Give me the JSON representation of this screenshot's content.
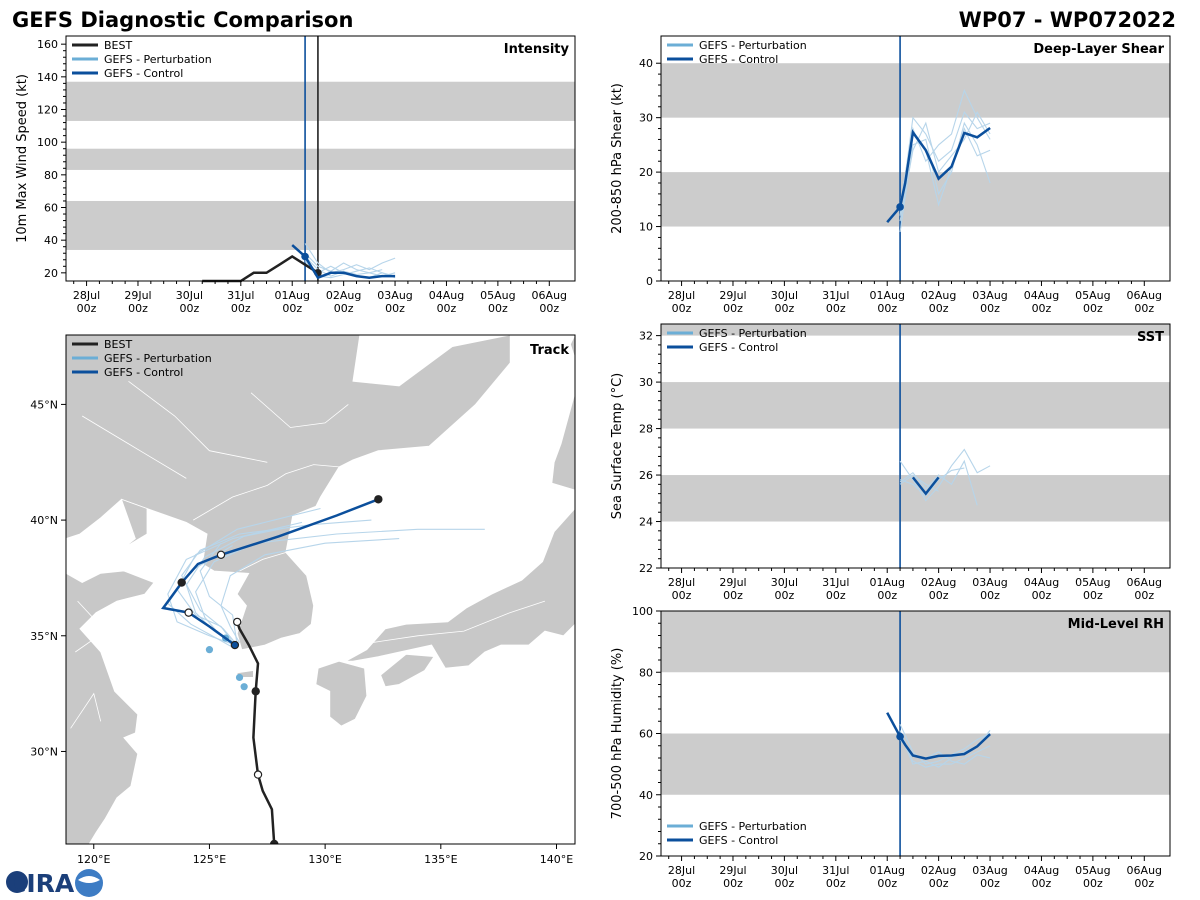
{
  "title_left": "GEFS Diagnostic Comparison",
  "title_right": "WP07 - WP072022",
  "colors": {
    "best": "#222222",
    "perturbation": "#6baed6",
    "perturbation_light": "#b7d5ea",
    "control": "#0b4f9c",
    "band": "#cccccc",
    "land": "#c8c8c8"
  },
  "time_axis": {
    "ticks": [
      "28Jul\n00z",
      "29Jul\n00z",
      "30Jul\n00z",
      "31Jul\n00z",
      "01Aug\n00z",
      "02Aug\n00z",
      "03Aug\n00z",
      "04Aug\n00z",
      "05Aug\n00z",
      "06Aug\n00z"
    ],
    "range_days": [
      -0.4,
      9.5
    ]
  },
  "logo": {
    "text": "CIRA"
  },
  "chart_data": [
    {
      "id": "intensity",
      "type": "line",
      "title": "Intensity",
      "ylabel": "10m Max Wind Speed (kt)",
      "ylim": [
        15,
        165
      ],
      "yticks": [
        20,
        40,
        60,
        80,
        100,
        120,
        140,
        160
      ],
      "bands": [
        [
          34,
          64
        ],
        [
          83,
          96
        ],
        [
          113,
          137
        ]
      ],
      "vlines": [
        {
          "day": 4.25,
          "series": "control"
        },
        {
          "day": 4.5,
          "series": "best"
        }
      ],
      "legend": [
        "BEST",
        "GEFS - Perturbation",
        "GEFS - Control"
      ],
      "legend_position": "top-left",
      "series": [
        {
          "name": "BEST",
          "x": [
            2.25,
            2.5,
            2.75,
            3.0,
            3.25,
            3.5,
            3.75,
            4.0,
            4.25,
            4.5
          ],
          "y": [
            15,
            15,
            15,
            15,
            20,
            20,
            25,
            30,
            25,
            20
          ],
          "marker_days": [
            4.5
          ]
        },
        {
          "name": "GEFS - Control",
          "x": [
            4.0,
            4.25,
            4.5,
            4.75,
            5.0,
            5.25,
            5.5,
            5.75,
            6.0
          ],
          "y": [
            37,
            30,
            17,
            20,
            20,
            18,
            17,
            18,
            18
          ],
          "marker_days": [
            4.25
          ]
        }
      ],
      "perturbation": [
        {
          "x": [
            4.25,
            4.5,
            4.75,
            5.0,
            5.25,
            5.5,
            5.75,
            6.0
          ],
          "y": [
            38,
            26,
            20,
            22,
            25,
            22,
            26,
            29
          ]
        },
        {
          "x": [
            4.25,
            4.5,
            4.75,
            5.0,
            5.25,
            5.5,
            5.75,
            6.0
          ],
          "y": [
            30,
            22,
            18,
            21,
            19,
            20,
            18,
            20
          ]
        },
        {
          "x": [
            4.25,
            4.5,
            4.75,
            5.0,
            5.25,
            5.5,
            5.75,
            6.0
          ],
          "y": [
            28,
            20,
            24,
            20,
            18,
            17,
            20,
            18
          ]
        },
        {
          "x": [
            4.25,
            4.5,
            4.75,
            5.0,
            5.25,
            5.5,
            5.75
          ],
          "y": [
            32,
            24,
            21,
            26,
            22,
            20,
            22
          ]
        },
        {
          "x": [
            4.25,
            4.5,
            4.75,
            5.0,
            5.25,
            5.5,
            5.75,
            6.0
          ],
          "y": [
            27,
            18,
            17,
            19,
            21,
            23,
            20,
            17
          ]
        }
      ]
    },
    {
      "id": "shear",
      "type": "line",
      "title": "Deep-Layer Shear",
      "ylabel": "200-850 hPa Shear (kt)",
      "ylim": [
        0,
        45
      ],
      "yticks": [
        0,
        10,
        20,
        30,
        40
      ],
      "bands": [
        [
          10,
          20
        ],
        [
          30,
          40
        ]
      ],
      "vlines": [
        {
          "day": 4.25,
          "series": "control"
        }
      ],
      "legend": [
        "GEFS - Perturbation",
        "GEFS - Control"
      ],
      "legend_position": "top-left",
      "series": [
        {
          "name": "GEFS - Control",
          "x": [
            4.0,
            4.25,
            4.35,
            4.5,
            4.75,
            5.0,
            5.25,
            5.5,
            5.75,
            6.0
          ],
          "y": [
            10.8,
            13.6,
            18,
            27.3,
            24,
            18.8,
            21,
            27.2,
            26.4,
            28.1
          ],
          "marker_days": [
            4.25
          ]
        }
      ],
      "perturbation": [
        {
          "x": [
            4.25,
            4.5,
            4.75,
            5.0,
            5.25,
            5.5,
            5.75,
            6.0
          ],
          "y": [
            12,
            30,
            27,
            22,
            24,
            31,
            28,
            29
          ]
        },
        {
          "x": [
            4.25,
            4.5,
            4.75,
            5.0,
            5.25,
            5.5,
            5.75,
            6.0
          ],
          "y": [
            9,
            25,
            26,
            16,
            20,
            29,
            25,
            18
          ]
        },
        {
          "x": [
            4.25,
            4.5,
            4.75,
            5.0,
            5.25,
            5.5,
            5.75,
            6.0
          ],
          "y": [
            14,
            28,
            22,
            25,
            27,
            35,
            30,
            26
          ]
        },
        {
          "x": [
            4.25,
            4.5,
            4.75,
            5.0,
            5.25,
            5.5,
            5.75,
            6.0
          ],
          "y": [
            11,
            24,
            29,
            20,
            23,
            26,
            31,
            27
          ]
        },
        {
          "x": [
            4.25,
            4.5,
            4.75,
            5.0,
            5.25,
            5.5,
            5.75,
            6.0
          ],
          "y": [
            13,
            27,
            24,
            14,
            21,
            28,
            23,
            24
          ]
        }
      ]
    },
    {
      "id": "sst",
      "type": "line",
      "title": "SST",
      "ylabel": "Sea Surface Temp (°C)",
      "ylim": [
        22,
        32.5
      ],
      "yticks": [
        22,
        24,
        26,
        28,
        30,
        32
      ],
      "bands": [
        [
          24,
          26
        ],
        [
          28,
          30
        ],
        [
          32,
          32.5
        ]
      ],
      "vlines": [
        {
          "day": 4.25,
          "series": "control"
        }
      ],
      "legend": [
        "GEFS - Perturbation",
        "GEFS - Control"
      ],
      "legend_position": "top-left",
      "series": [
        {
          "name": "GEFS - Control",
          "x": [
            4.5,
            4.75,
            5.0
          ],
          "y": [
            25.9,
            25.2,
            25.9
          ]
        }
      ],
      "perturbation": [
        {
          "x": [
            4.25,
            4.5,
            4.75,
            5.0,
            5.25,
            5.5,
            5.75,
            6.0
          ],
          "y": [
            26.6,
            25.8,
            24.9,
            25.5,
            26.4,
            27.1,
            26.1,
            26.4
          ]
        },
        {
          "x": [
            4.25,
            4.5,
            4.75,
            5.0,
            5.25,
            5.5,
            5.75
          ],
          "y": [
            25.7,
            26.1,
            25.4,
            26.0,
            25.6,
            26.6,
            24.7
          ]
        },
        {
          "x": [
            4.25,
            4.5,
            4.75,
            5.0,
            5.25,
            5.5
          ],
          "y": [
            25.8,
            25.6,
            25.1,
            25.8,
            26.2,
            26.3
          ]
        },
        {
          "x": [
            4.25,
            4.5,
            4.75,
            5.0
          ],
          "y": [
            25.6,
            26.0,
            25.6,
            25.3
          ]
        }
      ]
    },
    {
      "id": "rh",
      "type": "line",
      "title": "Mid-Level RH",
      "ylabel": "700-500 hPa Humidity (%)",
      "ylim": [
        20,
        100
      ],
      "yticks": [
        20,
        40,
        60,
        80,
        100
      ],
      "bands": [
        [
          40,
          60
        ],
        [
          80,
          100
        ]
      ],
      "vlines": [
        {
          "day": 4.25,
          "series": "control"
        }
      ],
      "legend": [
        "GEFS - Perturbation",
        "GEFS - Control"
      ],
      "legend_position": "bottom-left",
      "series": [
        {
          "name": "GEFS - Control",
          "x": [
            4.0,
            4.25,
            4.35,
            4.5,
            4.75,
            5.0,
            5.25,
            5.5,
            5.75,
            6.0
          ],
          "y": [
            66.8,
            59.0,
            56.3,
            52.8,
            51.8,
            52.7,
            52.8,
            53.3,
            55.8,
            59.8
          ],
          "marker_days": [
            4.25
          ]
        }
      ],
      "perturbation": [
        {
          "x": [
            4.25,
            4.5,
            4.75,
            5.0,
            5.25,
            5.5,
            5.75,
            6.0
          ],
          "y": [
            63,
            54,
            50,
            51,
            53,
            55,
            58,
            60
          ]
        },
        {
          "x": [
            4.25,
            4.5,
            4.75,
            5.0,
            5.25,
            5.5,
            5.75,
            6.0
          ],
          "y": [
            61,
            51,
            49,
            50,
            50,
            52,
            54,
            56
          ]
        },
        {
          "x": [
            4.25,
            4.5,
            4.75,
            5.0,
            5.25,
            5.5,
            5.75,
            6.0
          ],
          "y": [
            58,
            53,
            52,
            54,
            51,
            50,
            53,
            52
          ]
        },
        {
          "x": [
            4.25,
            4.5,
            4.75,
            5.0,
            5.25,
            5.5,
            5.75,
            6.0
          ],
          "y": [
            60,
            50,
            51,
            49,
            52,
            54,
            56,
            61
          ]
        }
      ]
    },
    {
      "id": "track",
      "type": "scatter",
      "title": "Track",
      "xlim": [
        118.8,
        140.8
      ],
      "ylim": [
        26,
        48
      ],
      "xticks": [
        120,
        125,
        130,
        135,
        140
      ],
      "xtick_labels": [
        "120°E",
        "125°E",
        "130°E",
        "135°E",
        "140°E"
      ],
      "yticks": [
        30,
        35,
        40,
        45
      ],
      "ytick_labels": [
        "30°N",
        "35°N",
        "40°N",
        "45°N"
      ],
      "legend": [
        "BEST",
        "GEFS - Perturbation",
        "GEFS - Control"
      ],
      "legend_position": "top-left",
      "best": {
        "lon": [
          127.8,
          127.7,
          127.3,
          127.1,
          126.9,
          127.0,
          127.1,
          126.7,
          126.3,
          126.2
        ],
        "lat": [
          26.0,
          27.5,
          28.3,
          29.0,
          30.6,
          32.6,
          33.8,
          34.6,
          35.3,
          35.6
        ],
        "marker_lon": [
          127.8,
          127.1,
          127.0,
          126.2
        ],
        "marker_lat": [
          26.0,
          29.0,
          32.6,
          35.6
        ]
      },
      "control": {
        "lon": [
          126.1,
          125.0,
          124.1,
          123.0,
          123.8,
          124.5,
          125.5,
          128.0,
          130.5,
          132.3
        ],
        "lat": [
          34.6,
          35.4,
          36.0,
          36.2,
          37.3,
          38.1,
          38.5,
          39.3,
          40.2,
          40.9
        ],
        "marker_lon": [
          126.1,
          124.1,
          123.8,
          125.5,
          132.3
        ],
        "marker_lat": [
          34.6,
          36.0,
          37.3,
          38.5,
          40.9
        ]
      },
      "perturbation": [
        {
          "lon": [
            126.1,
            125.4,
            124.8,
            124.4,
            125.2,
            127.0,
            130.5,
            134.0,
            136.9
          ],
          "lat": [
            34.6,
            35.1,
            35.8,
            36.9,
            38.2,
            39.0,
            39.4,
            39.6,
            39.6
          ]
        },
        {
          "lon": [
            126.1,
            125.0,
            123.6,
            123.2,
            124.0,
            126.0,
            129.0
          ],
          "lat": [
            34.6,
            35.0,
            35.6,
            36.8,
            38.3,
            39.2,
            39.9
          ]
        },
        {
          "lon": [
            126.2,
            125.6,
            124.6,
            123.8,
            124.6,
            126.3,
            129.4,
            132.0
          ],
          "lat": [
            34.6,
            35.3,
            36.1,
            37.6,
            38.7,
            39.4,
            39.8,
            40.0
          ]
        },
        {
          "lon": [
            126.0,
            125.3,
            124.2,
            123.2,
            124.2,
            126.0
          ],
          "lat": [
            34.5,
            34.9,
            35.5,
            36.4,
            37.8,
            38.9
          ]
        },
        {
          "lon": [
            126.3,
            125.9,
            125.5,
            125.9,
            127.4,
            130.0,
            133.2
          ],
          "lat": [
            34.7,
            35.4,
            36.3,
            37.6,
            38.5,
            39.0,
            39.2
          ]
        },
        {
          "lon": [
            126.1,
            125.2,
            124.4,
            124.0,
            124.8,
            126.5,
            128.5
          ],
          "lat": [
            34.6,
            35.2,
            36.0,
            37.2,
            38.4,
            39.3,
            39.7
          ]
        },
        {
          "lon": [
            126.2,
            126.0,
            125.0,
            124.6,
            125.5
          ],
          "lat": [
            34.6,
            35.9,
            36.7,
            37.8,
            39.0
          ]
        },
        {
          "lon": [
            126.1,
            125.5,
            124.4,
            123.6,
            124.4,
            126.2,
            129.8
          ],
          "lat": [
            34.6,
            35.4,
            35.9,
            37.0,
            38.5,
            39.6,
            40.5
          ]
        }
      ],
      "perturbation_points": {
        "lon": [
          125.0,
          126.3,
          126.5,
          125.7
        ],
        "lat": [
          34.4,
          33.2,
          32.8,
          34.9
        ]
      }
    }
  ]
}
